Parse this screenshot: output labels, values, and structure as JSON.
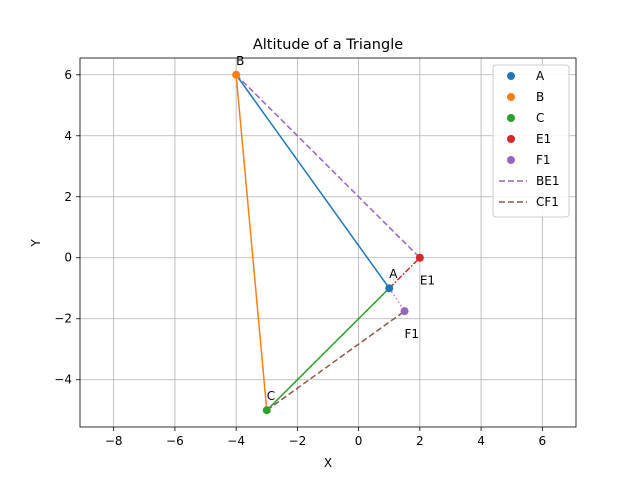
{
  "chart_data": {
    "type": "scatter",
    "title": "Altitude of a Triangle",
    "xlabel": "X",
    "ylabel": "Y",
    "xlim": [
      -9.1,
      7.1
    ],
    "ylim": [
      -5.55,
      6.55
    ],
    "xticks": [
      -8,
      -6,
      -4,
      -2,
      0,
      2,
      4,
      6
    ],
    "yticks": [
      -4,
      -2,
      0,
      2,
      4,
      6
    ],
    "xtick_labels": [
      "−8",
      "−6",
      "−4",
      "−2",
      "0",
      "2",
      "4",
      "6"
    ],
    "ytick_labels": [
      "−4",
      "−2",
      "0",
      "2",
      "4",
      "6"
    ],
    "grid": true,
    "legend_position": "top-right",
    "points": [
      {
        "name": "A",
        "x": 1,
        "y": -1,
        "color": "#1f77b4"
      },
      {
        "name": "B",
        "x": -4,
        "y": 6,
        "color": "#ff7f0e"
      },
      {
        "name": "C",
        "x": -3,
        "y": -5,
        "color": "#2ca02c"
      },
      {
        "name": "E1",
        "x": 2,
        "y": 0,
        "color": "#d62728"
      },
      {
        "name": "F1",
        "x": 1.5,
        "y": -1.75,
        "color": "#9467bd"
      }
    ],
    "segments": [
      {
        "from": [
          1,
          -1
        ],
        "to": [
          -4,
          6
        ],
        "color": "#1f77b4",
        "style": "solid"
      },
      {
        "from": [
          -4,
          6
        ],
        "to": [
          -3,
          -5
        ],
        "color": "#ff7f0e",
        "style": "solid"
      },
      {
        "from": [
          -3,
          -5
        ],
        "to": [
          1,
          -1
        ],
        "color": "#2ca02c",
        "style": "solid"
      },
      {
        "from": [
          1,
          -1
        ],
        "to": [
          2,
          0
        ],
        "color": "#d62728",
        "style": "dashdot"
      },
      {
        "from": [
          1,
          -1
        ],
        "to": [
          1.5,
          -1.75
        ],
        "color": "#e377c2",
        "style": "dotted"
      }
    ],
    "altitudes": [
      {
        "name": "BE1",
        "from": [
          -4,
          6
        ],
        "to": [
          2,
          0
        ],
        "color": "#9467bd",
        "style": "dashed"
      },
      {
        "name": "CF1",
        "from": [
          -3,
          -5
        ],
        "to": [
          1.5,
          -1.75
        ],
        "color": "#8c564b",
        "style": "dashed"
      }
    ],
    "annotations": [
      {
        "text": "B",
        "x": -4,
        "y": 6,
        "pos": "above"
      },
      {
        "text": "A",
        "x": 1,
        "y": -1,
        "pos": "above"
      },
      {
        "text": "C",
        "x": -3,
        "y": -5,
        "pos": "above"
      },
      {
        "text": "E1",
        "x": 2,
        "y": 0,
        "pos": "below"
      },
      {
        "text": "F1",
        "x": 1.5,
        "y": -1.75,
        "pos": "below"
      }
    ],
    "legend": [
      {
        "label": "A",
        "kind": "marker",
        "color": "#1f77b4"
      },
      {
        "label": "B",
        "kind": "marker",
        "color": "#ff7f0e"
      },
      {
        "label": "C",
        "kind": "marker",
        "color": "#2ca02c"
      },
      {
        "label": "E1",
        "kind": "marker",
        "color": "#d62728"
      },
      {
        "label": "F1",
        "kind": "marker",
        "color": "#9467bd"
      },
      {
        "label": "BE1",
        "kind": "dashed-line",
        "color": "#9467bd"
      },
      {
        "label": "CF1",
        "kind": "dashed-line",
        "color": "#8c564b"
      }
    ]
  }
}
